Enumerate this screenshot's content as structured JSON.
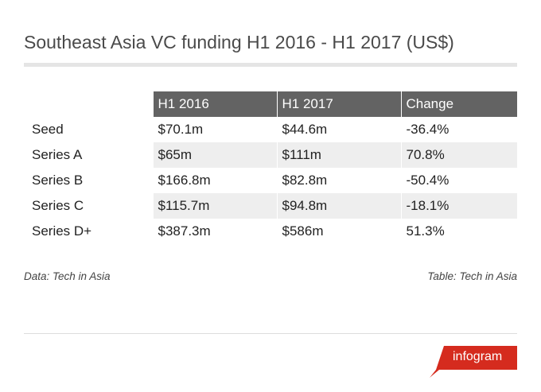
{
  "title": "Southeast Asia VC funding H1 2016 - H1 2017 (US$)",
  "chart_data": {
    "type": "table",
    "title": "Southeast Asia VC funding H1 2016 - H1 2017 (US$)",
    "columns": [
      "",
      "H1 2016",
      "H1 2017",
      "Change"
    ],
    "rows": [
      [
        "Seed",
        "$70.1m",
        "$44.6m",
        "-36.4%"
      ],
      [
        "Series A",
        "$65m",
        "$111m",
        "70.8%"
      ],
      [
        "Series B",
        "$166.8m",
        "$82.8m",
        "-50.4%"
      ],
      [
        "Series C",
        "$115.7m",
        "$94.8m",
        "-18.1%"
      ],
      [
        "Series D+",
        "$387.3m",
        "$586m",
        "51.3%"
      ]
    ]
  },
  "footer": {
    "data_source": "Data: Tech in Asia",
    "table_source": "Table: Tech in Asia"
  },
  "brand": {
    "logo_text": "infogram",
    "logo_icon": "infogram-logo-icon",
    "logo_color": "#d52b1e"
  },
  "colors": {
    "header_bg": "#636363",
    "alt_row_bg": "#eeeeee"
  }
}
